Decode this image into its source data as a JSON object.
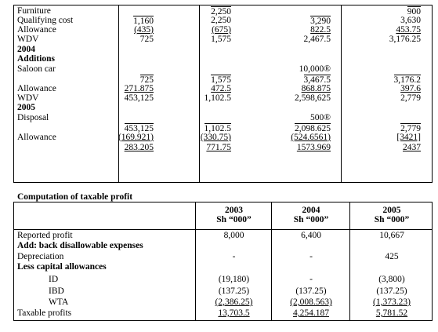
{
  "capital_table": {
    "rows": [
      {
        "label": "Furniture",
        "bold": false,
        "vals": [
          "",
          "2,250",
          "",
          "900"
        ],
        "fmt": [
          "",
          "ol",
          "",
          "ol"
        ]
      },
      {
        "label": "Qualifying cost",
        "bold": false,
        "vals": [
          "1,160",
          "2,250",
          "3,290",
          "3,630"
        ],
        "fmt": [
          "ol",
          "",
          "ol",
          ""
        ]
      },
      {
        "label": "Allowance",
        "bold": false,
        "vals": [
          "(435)",
          "(675)",
          "822.5",
          "453.75"
        ],
        "fmt": [
          "ul",
          "ul",
          "ul",
          "ul"
        ]
      },
      {
        "label": "WDV",
        "bold": false,
        "vals": [
          "725",
          "1,575",
          "2,467.5",
          "3,176.25"
        ],
        "fmt": [
          "",
          "",
          "",
          ""
        ]
      },
      {
        "label": "2004",
        "bold": true,
        "vals": [
          "",
          "",
          "",
          ""
        ],
        "fmt": [
          "",
          "",
          "",
          ""
        ]
      },
      {
        "label": "Additions",
        "bold": true,
        "vals": [
          "",
          "",
          "",
          ""
        ],
        "fmt": [
          "",
          "",
          "",
          ""
        ]
      },
      {
        "label": "Saloon car",
        "bold": false,
        "vals": [
          "",
          "",
          "10,000®",
          ""
        ],
        "fmt": [
          "",
          "",
          "",
          ""
        ]
      },
      {
        "label": "",
        "bold": false,
        "vals": [
          "725",
          "1,575",
          "3,467.5",
          "3,176.2"
        ],
        "fmt": [
          "ol",
          "ol",
          "ol",
          "ol"
        ]
      },
      {
        "label": "Allowance",
        "bold": false,
        "vals": [
          "271.875",
          "472.5",
          "868.875",
          "397.6"
        ],
        "fmt": [
          "ul",
          "ul",
          "ul",
          "ul"
        ]
      },
      {
        "label": "WDV",
        "bold": false,
        "vals": [
          "453,125",
          "1,102.5",
          "2,598,625",
          "2,779"
        ],
        "fmt": [
          "",
          "",
          "",
          ""
        ]
      },
      {
        "label": "2005",
        "bold": true,
        "vals": [
          "",
          "",
          "",
          ""
        ],
        "fmt": [
          "",
          "",
          "",
          ""
        ]
      },
      {
        "label": "Disposal",
        "bold": false,
        "vals": [
          "",
          "",
          "500®",
          ""
        ],
        "fmt": [
          "",
          "",
          "",
          ""
        ]
      },
      {
        "label": "",
        "bold": false,
        "vals": [
          "453,125",
          "1,102.5",
          "2,098.625",
          "2,779"
        ],
        "fmt": [
          "ol",
          "ol",
          "ol",
          "ol"
        ]
      },
      {
        "label": "Allowance",
        "bold": false,
        "vals": [
          "(169.921)",
          "(330.75)",
          "(524.6561)",
          "[3421]"
        ],
        "fmt": [
          "ul",
          "ul",
          "ul",
          "ul"
        ]
      },
      {
        "label": "",
        "bold": false,
        "vals": [
          "283.205",
          "771.75",
          "1573.969",
          "2437"
        ],
        "fmt": [
          "dul",
          "dul",
          "dul",
          "dul"
        ]
      }
    ]
  },
  "computation": {
    "title": "Computation of taxable profit",
    "headers": [
      [
        "2003",
        "Sh “000”"
      ],
      [
        "2004",
        "Sh “000”"
      ],
      [
        "2005",
        "Sh “000”"
      ]
    ],
    "rows": [
      {
        "label": "Reported profit",
        "bold": false,
        "indent": false,
        "vals": [
          "8,000",
          "6,400",
          "10,667"
        ],
        "fmt": [
          "",
          "",
          ""
        ]
      },
      {
        "label": "Add: back disallowable expenses",
        "bold": true,
        "indent": false,
        "vals": [
          "",
          "",
          ""
        ],
        "fmt": [
          "",
          "",
          ""
        ]
      },
      {
        "label": "Depreciation",
        "bold": false,
        "indent": false,
        "vals": [
          "-",
          "-",
          "425"
        ],
        "fmt": [
          "",
          "",
          ""
        ]
      },
      {
        "label": "Less capital allowances",
        "bold": true,
        "indent": false,
        "vals": [
          "",
          "",
          ""
        ],
        "fmt": [
          "",
          "",
          ""
        ]
      },
      {
        "label": "ID",
        "bold": false,
        "indent": true,
        "vals": [
          "(19,180)",
          "-",
          "(3,800)"
        ],
        "fmt": [
          "",
          "",
          ""
        ]
      },
      {
        "label": "IBD",
        "bold": false,
        "indent": true,
        "vals": [
          "(137.25)",
          "(137.25)",
          "(137.25)"
        ],
        "fmt": [
          "",
          "",
          ""
        ]
      },
      {
        "label": "WTA",
        "bold": false,
        "indent": true,
        "vals": [
          "(2,386.25)",
          "(2,008.563)",
          "(1,373.23)"
        ],
        "fmt": [
          "ul",
          "ul",
          "ul"
        ]
      },
      {
        "label": "Taxable profits",
        "bold": false,
        "indent": false,
        "vals": [
          "13,703.5",
          "4,254.187",
          "5,781.52"
        ],
        "fmt": [
          "dul",
          "dul",
          "dul"
        ]
      }
    ]
  }
}
